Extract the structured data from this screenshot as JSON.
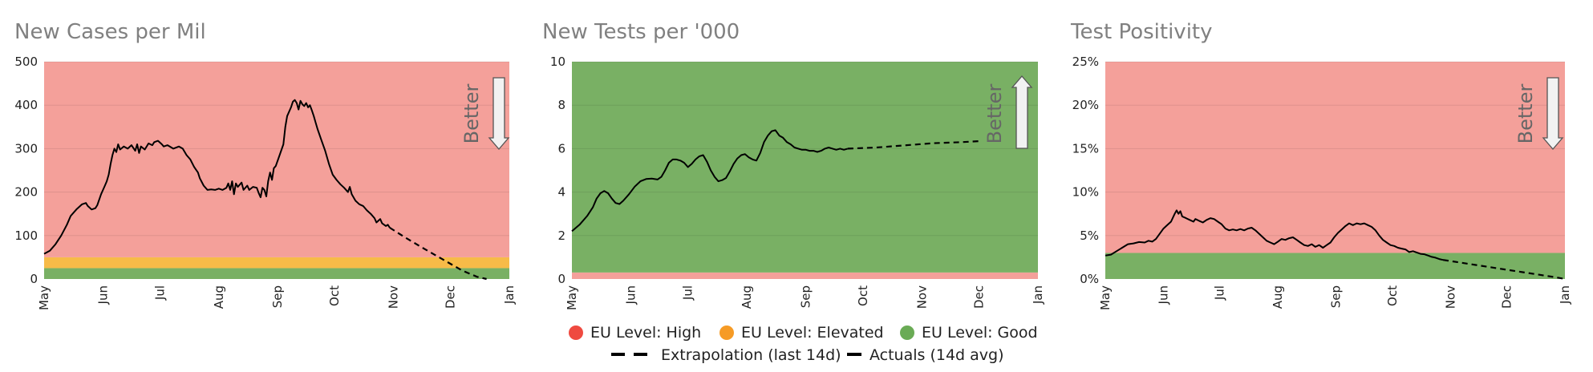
{
  "colors": {
    "high": "#f4a09a",
    "elevated": "#f7bb48",
    "good": "#79b064",
    "high_dot": "#ef4a40",
    "elevated_dot": "#f69b26",
    "good_dot": "#6aab55",
    "line": "#000000",
    "title": "#808080",
    "arrow_fill": "#f2f2f2",
    "arrow_stroke": "#555555"
  },
  "legend": {
    "high": "EU Level: High",
    "elevated": "EU Level: Elevated",
    "good": "EU Level: Good",
    "extrapolation": "Extrapolation (last 14d)",
    "actuals": "Actuals (14d avg)"
  },
  "chart_data": [
    {
      "type": "line",
      "title": "New Cases per Mil",
      "annotation": "Better",
      "better_direction": "down",
      "ylim": [
        0,
        500
      ],
      "y_ticks": [
        "0",
        "100",
        "200",
        "300",
        "400",
        "500"
      ],
      "y_tick_values": [
        0,
        100,
        200,
        300,
        400,
        500
      ],
      "x_ticks": [
        "May",
        "Jun",
        "Jul",
        "Aug",
        "Sep",
        "Oct",
        "Nov",
        "Dec",
        "Jan"
      ],
      "x_tick_days": [
        0,
        31,
        61,
        92,
        123,
        153,
        184,
        214,
        245
      ],
      "bands": [
        {
          "from": 0,
          "to": 25,
          "level": "good"
        },
        {
          "from": 25,
          "to": 50,
          "level": "elevated"
        },
        {
          "from": 50,
          "to": 500,
          "level": "high"
        }
      ],
      "actuals": [
        [
          0,
          58
        ],
        [
          3,
          65
        ],
        [
          6,
          80
        ],
        [
          9,
          100
        ],
        [
          12,
          125
        ],
        [
          14,
          145
        ],
        [
          17,
          160
        ],
        [
          20,
          172
        ],
        [
          22,
          175
        ],
        [
          23,
          168
        ],
        [
          25,
          160
        ],
        [
          27,
          163
        ],
        [
          28,
          170
        ],
        [
          30,
          195
        ],
        [
          32,
          215
        ],
        [
          33,
          225
        ],
        [
          34,
          240
        ],
        [
          35,
          265
        ],
        [
          36,
          285
        ],
        [
          37,
          300
        ],
        [
          38,
          292
        ],
        [
          39,
          310
        ],
        [
          40,
          298
        ],
        [
          42,
          305
        ],
        [
          44,
          300
        ],
        [
          46,
          308
        ],
        [
          48,
          295
        ],
        [
          49,
          310
        ],
        [
          50,
          290
        ],
        [
          51,
          305
        ],
        [
          53,
          298
        ],
        [
          55,
          312
        ],
        [
          57,
          308
        ],
        [
          58,
          315
        ],
        [
          60,
          318
        ],
        [
          62,
          310
        ],
        [
          63,
          305
        ],
        [
          65,
          308
        ],
        [
          68,
          300
        ],
        [
          71,
          305
        ],
        [
          73,
          300
        ],
        [
          75,
          285
        ],
        [
          77,
          275
        ],
        [
          79,
          258
        ],
        [
          81,
          245
        ],
        [
          82,
          232
        ],
        [
          84,
          215
        ],
        [
          86,
          205
        ],
        [
          88,
          206
        ],
        [
          90,
          205
        ],
        [
          92,
          208
        ],
        [
          94,
          205
        ],
        [
          96,
          210
        ],
        [
          97,
          220
        ],
        [
          98,
          205
        ],
        [
          99,
          225
        ],
        [
          100,
          195
        ],
        [
          101,
          220
        ],
        [
          102,
          212
        ],
        [
          104,
          222
        ],
        [
          105,
          205
        ],
        [
          107,
          215
        ],
        [
          108,
          205
        ],
        [
          110,
          212
        ],
        [
          112,
          210
        ],
        [
          113,
          198
        ],
        [
          114,
          188
        ],
        [
          115,
          210
        ],
        [
          116,
          205
        ],
        [
          117,
          190
        ],
        [
          118,
          225
        ],
        [
          119,
          245
        ],
        [
          120,
          228
        ],
        [
          121,
          255
        ],
        [
          122,
          260
        ],
        [
          124,
          285
        ],
        [
          126,
          310
        ],
        [
          127,
          350
        ],
        [
          128,
          375
        ],
        [
          130,
          395
        ],
        [
          131,
          408
        ],
        [
          132,
          412
        ],
        [
          133,
          405
        ],
        [
          134,
          390
        ],
        [
          135,
          410
        ],
        [
          136,
          402
        ],
        [
          137,
          398
        ],
        [
          138,
          405
        ],
        [
          139,
          395
        ],
        [
          140,
          400
        ],
        [
          141,
          388
        ],
        [
          142,
          375
        ],
        [
          143,
          360
        ],
        [
          144,
          345
        ],
        [
          146,
          320
        ],
        [
          148,
          295
        ],
        [
          150,
          265
        ],
        [
          152,
          240
        ],
        [
          154,
          228
        ],
        [
          156,
          218
        ],
        [
          158,
          210
        ],
        [
          160,
          200
        ],
        [
          161,
          212
        ],
        [
          162,
          195
        ],
        [
          164,
          180
        ],
        [
          166,
          172
        ],
        [
          168,
          168
        ],
        [
          170,
          158
        ],
        [
          172,
          150
        ],
        [
          174,
          140
        ],
        [
          175,
          130
        ],
        [
          177,
          138
        ],
        [
          178,
          128
        ],
        [
          180,
          122
        ],
        [
          181,
          125
        ],
        [
          182,
          118
        ]
      ],
      "extrapolation": [
        [
          182,
          118
        ],
        [
          190,
          96
        ],
        [
          200,
          70
        ],
        [
          210,
          45
        ],
        [
          220,
          20
        ],
        [
          228,
          5
        ],
        [
          233,
          0
        ]
      ]
    },
    {
      "type": "line",
      "title": "New Tests per '000",
      "annotation": "Better",
      "better_direction": "up",
      "ylim": [
        0,
        10
      ],
      "y_ticks": [
        "0",
        "2",
        "4",
        "6",
        "8",
        "10"
      ],
      "y_tick_values": [
        0,
        2,
        4,
        6,
        8,
        10
      ],
      "x_ticks": [
        "May",
        "Jun",
        "Jul",
        "Aug",
        "Sep",
        "Oct",
        "Nov",
        "Dec",
        "Jan"
      ],
      "x_tick_days": [
        0,
        31,
        61,
        92,
        123,
        153,
        184,
        214,
        245
      ],
      "bands": [
        {
          "from": 0,
          "to": 0.3,
          "level": "high"
        },
        {
          "from": 0.3,
          "to": 10,
          "level": "good"
        }
      ],
      "actuals": [
        [
          0,
          2.2
        ],
        [
          4,
          2.5
        ],
        [
          8,
          2.9
        ],
        [
          11,
          3.3
        ],
        [
          13,
          3.7
        ],
        [
          15,
          3.95
        ],
        [
          17,
          4.05
        ],
        [
          19,
          3.95
        ],
        [
          21,
          3.7
        ],
        [
          23,
          3.5
        ],
        [
          25,
          3.45
        ],
        [
          27,
          3.6
        ],
        [
          30,
          3.9
        ],
        [
          33,
          4.25
        ],
        [
          36,
          4.5
        ],
        [
          39,
          4.6
        ],
        [
          42,
          4.62
        ],
        [
          45,
          4.58
        ],
        [
          47,
          4.7
        ],
        [
          49,
          5.0
        ],
        [
          51,
          5.35
        ],
        [
          53,
          5.5
        ],
        [
          55,
          5.5
        ],
        [
          57,
          5.45
        ],
        [
          59,
          5.35
        ],
        [
          61,
          5.15
        ],
        [
          63,
          5.3
        ],
        [
          65,
          5.5
        ],
        [
          67,
          5.65
        ],
        [
          69,
          5.7
        ],
        [
          71,
          5.4
        ],
        [
          73,
          5.0
        ],
        [
          75,
          4.7
        ],
        [
          77,
          4.5
        ],
        [
          79,
          4.55
        ],
        [
          81,
          4.65
        ],
        [
          83,
          4.95
        ],
        [
          85,
          5.3
        ],
        [
          87,
          5.55
        ],
        [
          89,
          5.7
        ],
        [
          91,
          5.75
        ],
        [
          93,
          5.6
        ],
        [
          95,
          5.5
        ],
        [
          97,
          5.45
        ],
        [
          99,
          5.8
        ],
        [
          101,
          6.3
        ],
        [
          103,
          6.6
        ],
        [
          105,
          6.8
        ],
        [
          107,
          6.85
        ],
        [
          109,
          6.6
        ],
        [
          111,
          6.5
        ],
        [
          113,
          6.3
        ],
        [
          115,
          6.2
        ],
        [
          117,
          6.05
        ],
        [
          119,
          6.0
        ],
        [
          121,
          5.95
        ],
        [
          123,
          5.95
        ],
        [
          125,
          5.9
        ],
        [
          127,
          5.9
        ],
        [
          129,
          5.85
        ],
        [
          131,
          5.9
        ],
        [
          133,
          6.0
        ],
        [
          135,
          6.05
        ],
        [
          137,
          6.0
        ],
        [
          139,
          5.95
        ],
        [
          141,
          6.0
        ],
        [
          143,
          5.95
        ],
        [
          145,
          6.0
        ]
      ],
      "extrapolation": [
        [
          145,
          6.0
        ],
        [
          160,
          6.05
        ],
        [
          175,
          6.15
        ],
        [
          190,
          6.25
        ],
        [
          205,
          6.3
        ],
        [
          215,
          6.35
        ]
      ]
    },
    {
      "type": "line",
      "title": "Test Positivity",
      "annotation": "Better",
      "better_direction": "down",
      "ylim": [
        0,
        25
      ],
      "y_ticks": [
        "0%",
        "5%",
        "10%",
        "15%",
        "20%",
        "25%"
      ],
      "y_tick_values": [
        0,
        5,
        10,
        15,
        20,
        25
      ],
      "x_ticks": [
        "May",
        "Jun",
        "Jul",
        "Aug",
        "Sep",
        "Oct",
        "Nov",
        "Dec",
        "Jan"
      ],
      "x_tick_days": [
        0,
        31,
        61,
        92,
        123,
        153,
        184,
        214,
        245
      ],
      "bands": [
        {
          "from": 0,
          "to": 3,
          "level": "good"
        },
        {
          "from": 3,
          "to": 25,
          "level": "high"
        }
      ],
      "actuals": [
        [
          0,
          2.7
        ],
        [
          3,
          2.8
        ],
        [
          6,
          3.2
        ],
        [
          9,
          3.6
        ],
        [
          12,
          4.0
        ],
        [
          15,
          4.1
        ],
        [
          18,
          4.25
        ],
        [
          21,
          4.2
        ],
        [
          23,
          4.4
        ],
        [
          25,
          4.3
        ],
        [
          27,
          4.6
        ],
        [
          29,
          5.2
        ],
        [
          31,
          5.8
        ],
        [
          33,
          6.2
        ],
        [
          35,
          6.6
        ],
        [
          37,
          7.5
        ],
        [
          38,
          7.9
        ],
        [
          39,
          7.5
        ],
        [
          40,
          7.8
        ],
        [
          41,
          7.2
        ],
        [
          43,
          7.0
        ],
        [
          45,
          6.8
        ],
        [
          47,
          6.6
        ],
        [
          48,
          6.9
        ],
        [
          50,
          6.7
        ],
        [
          52,
          6.5
        ],
        [
          54,
          6.8
        ],
        [
          56,
          7.0
        ],
        [
          58,
          6.9
        ],
        [
          60,
          6.6
        ],
        [
          62,
          6.3
        ],
        [
          64,
          5.8
        ],
        [
          66,
          5.6
        ],
        [
          68,
          5.7
        ],
        [
          70,
          5.6
        ],
        [
          72,
          5.75
        ],
        [
          74,
          5.6
        ],
        [
          76,
          5.8
        ],
        [
          78,
          5.9
        ],
        [
          80,
          5.6
        ],
        [
          82,
          5.2
        ],
        [
          84,
          4.8
        ],
        [
          86,
          4.4
        ],
        [
          88,
          4.2
        ],
        [
          90,
          4.0
        ],
        [
          92,
          4.3
        ],
        [
          94,
          4.6
        ],
        [
          96,
          4.5
        ],
        [
          98,
          4.7
        ],
        [
          100,
          4.8
        ],
        [
          102,
          4.5
        ],
        [
          104,
          4.2
        ],
        [
          106,
          3.9
        ],
        [
          108,
          3.8
        ],
        [
          110,
          4.0
        ],
        [
          112,
          3.7
        ],
        [
          114,
          3.9
        ],
        [
          116,
          3.6
        ],
        [
          118,
          3.9
        ],
        [
          120,
          4.2
        ],
        [
          122,
          4.8
        ],
        [
          124,
          5.3
        ],
        [
          126,
          5.7
        ],
        [
          128,
          6.1
        ],
        [
          130,
          6.4
        ],
        [
          132,
          6.2
        ],
        [
          134,
          6.4
        ],
        [
          136,
          6.3
        ],
        [
          138,
          6.4
        ],
        [
          140,
          6.2
        ],
        [
          142,
          6.0
        ],
        [
          144,
          5.6
        ],
        [
          146,
          5.0
        ],
        [
          148,
          4.5
        ],
        [
          150,
          4.2
        ],
        [
          152,
          3.9
        ],
        [
          154,
          3.8
        ],
        [
          156,
          3.6
        ],
        [
          158,
          3.5
        ],
        [
          160,
          3.4
        ],
        [
          162,
          3.1
        ],
        [
          164,
          3.2
        ],
        [
          166,
          3.05
        ],
        [
          168,
          2.9
        ],
        [
          170,
          2.85
        ],
        [
          172,
          2.7
        ],
        [
          174,
          2.55
        ],
        [
          176,
          2.45
        ],
        [
          178,
          2.3
        ],
        [
          180,
          2.2
        ]
      ],
      "extrapolation": [
        [
          180,
          2.2
        ],
        [
          195,
          1.7
        ],
        [
          210,
          1.2
        ],
        [
          225,
          0.7
        ],
        [
          240,
          0.2
        ],
        [
          245,
          0.0
        ]
      ]
    }
  ]
}
